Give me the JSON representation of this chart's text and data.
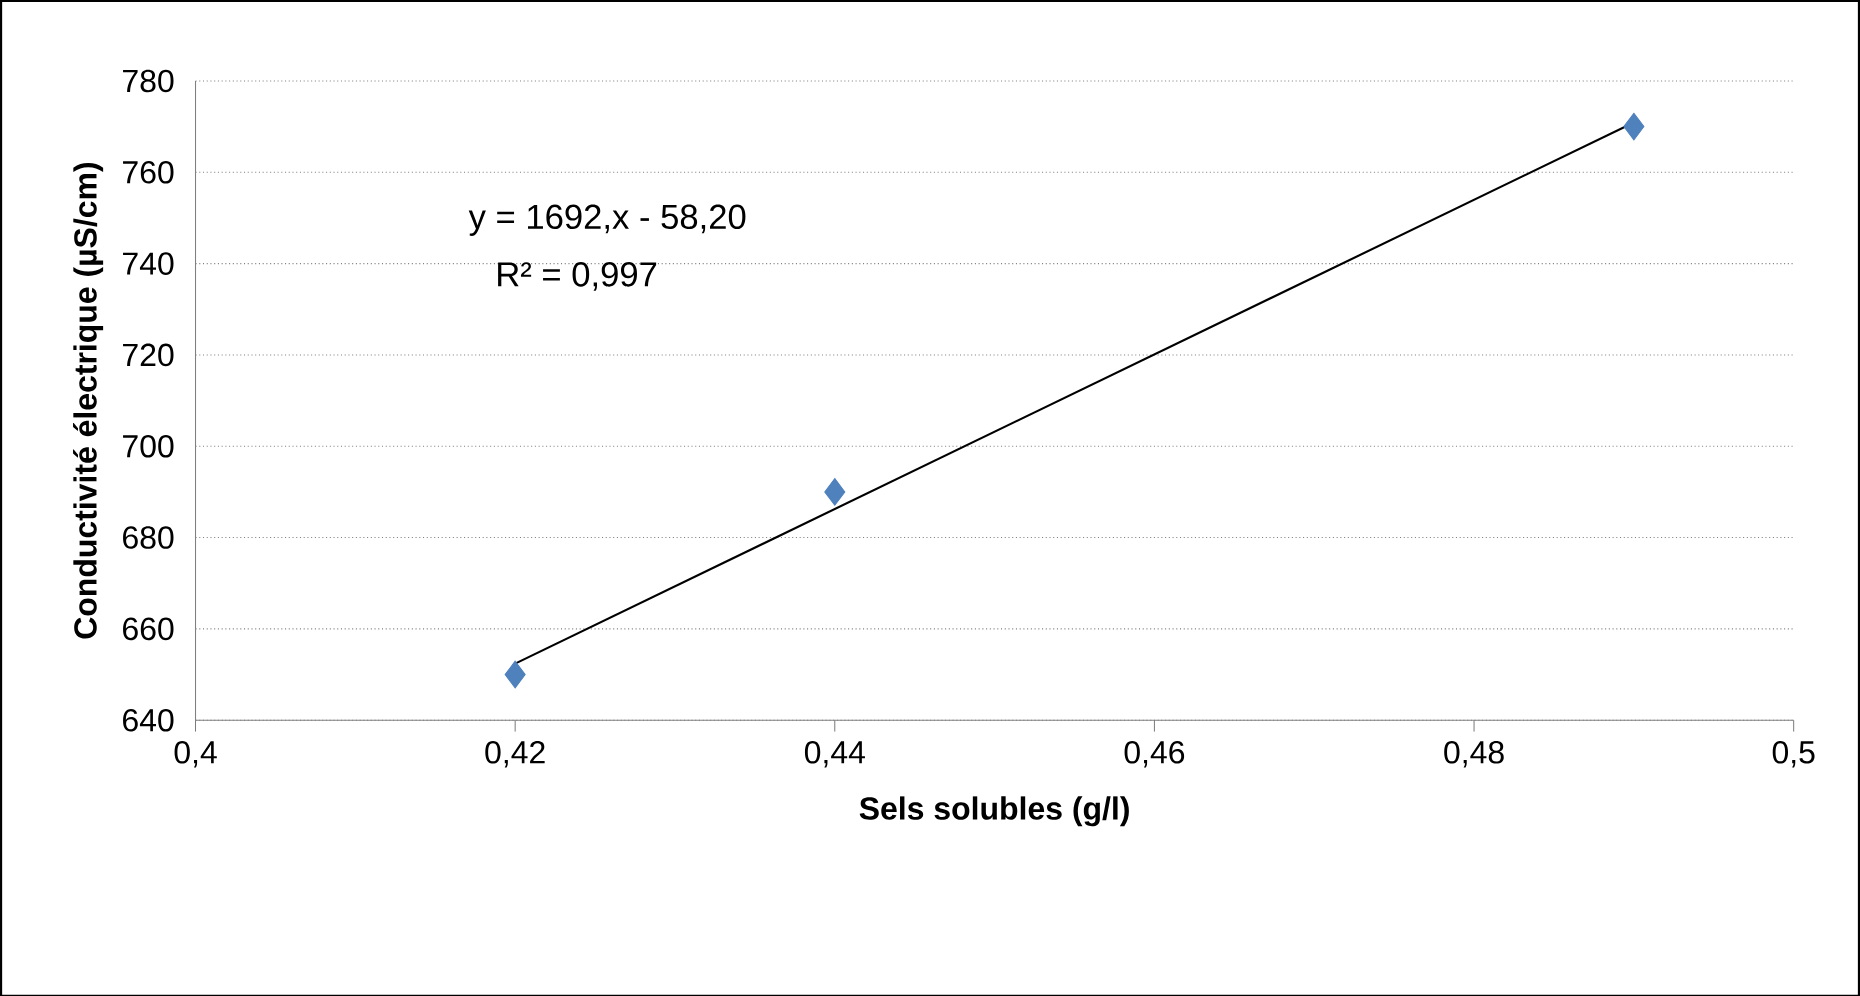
{
  "chart_data": {
    "type": "scatter",
    "xlabel": "Sels solubles (g/l)",
    "ylabel": "Conductivité électrique (µS/cm)",
    "annotations": [
      "y = 1692,x - 58,20",
      "R² = 0,997"
    ],
    "xlim": [
      0.4,
      0.5
    ],
    "xticks": [
      {
        "value": 0.4,
        "label": "0,4"
      },
      {
        "value": 0.42,
        "label": "0,42"
      },
      {
        "value": 0.44,
        "label": "0,44"
      },
      {
        "value": 0.46,
        "label": "0,46"
      },
      {
        "value": 0.48,
        "label": "0,48"
      },
      {
        "value": 0.5,
        "label": "0,5"
      }
    ],
    "ylim": [
      640,
      780
    ],
    "yticks": [
      640,
      660,
      680,
      700,
      720,
      740,
      760,
      780
    ],
    "grid": "y",
    "series": [
      {
        "color": "#4f81bd",
        "marker": "diamond",
        "x": [
          0.42,
          0.44,
          0.49
        ],
        "values": [
          650,
          690,
          770
        ]
      },
      {
        "type": "line",
        "color": "#000000",
        "marker": "none",
        "line_style": "solid",
        "x": [
          0.42,
          0.49
        ],
        "values": [
          652.4,
          770.9
        ]
      }
    ]
  }
}
